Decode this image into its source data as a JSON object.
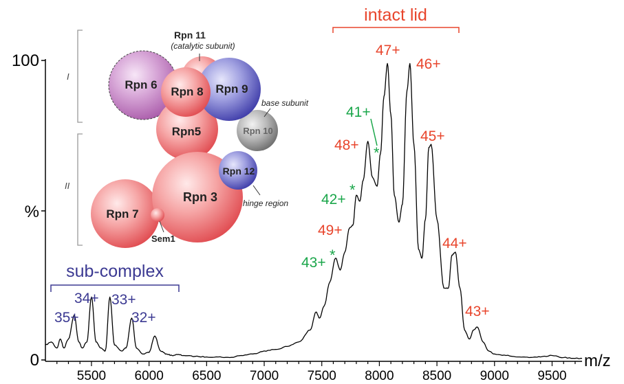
{
  "chart_data": {
    "type": "line",
    "xlabel": "m/z",
    "ylabel": "%",
    "xlim": [
      5100,
      9760
    ],
    "ylim": [
      0,
      100
    ],
    "x_ticks": [
      "5500",
      "6000",
      "6500",
      "7000",
      "7500",
      "8000",
      "8500",
      "9000",
      "9500"
    ],
    "y_ticks": [
      "0",
      "100"
    ],
    "series": [
      {
        "color": "#000000",
        "points": [
          [
            5100,
            5
          ],
          [
            5150,
            6
          ],
          [
            5200,
            4
          ],
          [
            5230,
            7
          ],
          [
            5260,
            4
          ],
          [
            5300,
            7
          ],
          [
            5350,
            15
          ],
          [
            5390,
            6
          ],
          [
            5420,
            4
          ],
          [
            5460,
            6
          ],
          [
            5500,
            21
          ],
          [
            5540,
            6
          ],
          [
            5580,
            4
          ],
          [
            5620,
            3
          ],
          [
            5660,
            21
          ],
          [
            5700,
            5
          ],
          [
            5760,
            3
          ],
          [
            5800,
            4
          ],
          [
            5850,
            14
          ],
          [
            5890,
            4
          ],
          [
            5950,
            2
          ],
          [
            6000,
            2.5
          ],
          [
            6050,
            8
          ],
          [
            6100,
            3
          ],
          [
            6150,
            2
          ],
          [
            6200,
            1.5
          ],
          [
            6250,
            1.8
          ],
          [
            6300,
            1.5
          ],
          [
            6400,
            1.2
          ],
          [
            6500,
            1
          ],
          [
            6600,
            1
          ],
          [
            6700,
            0.8
          ],
          [
            6800,
            1.5
          ],
          [
            6900,
            2
          ],
          [
            7000,
            3
          ],
          [
            7100,
            3.5
          ],
          [
            7200,
            4.5
          ],
          [
            7300,
            6
          ],
          [
            7400,
            10
          ],
          [
            7450,
            16
          ],
          [
            7480,
            14
          ],
          [
            7520,
            18
          ],
          [
            7570,
            26
          ],
          [
            7620,
            34
          ],
          [
            7660,
            30
          ],
          [
            7700,
            36
          ],
          [
            7740,
            44
          ],
          [
            7770,
            45
          ],
          [
            7800,
            55
          ],
          [
            7830,
            53
          ],
          [
            7860,
            60
          ],
          [
            7900,
            73
          ],
          [
            7940,
            61
          ],
          [
            7980,
            58
          ],
          [
            8010,
            69
          ],
          [
            8040,
            88
          ],
          [
            8070,
            99
          ],
          [
            8100,
            82
          ],
          [
            8130,
            55
          ],
          [
            8170,
            46
          ],
          [
            8200,
            52
          ],
          [
            8240,
            90
          ],
          [
            8265,
            99
          ],
          [
            8300,
            72
          ],
          [
            8340,
            37
          ],
          [
            8370,
            34
          ],
          [
            8400,
            47
          ],
          [
            8430,
            71
          ],
          [
            8450,
            72
          ],
          [
            8500,
            47
          ],
          [
            8560,
            24
          ],
          [
            8600,
            24
          ],
          [
            8630,
            35
          ],
          [
            8660,
            36
          ],
          [
            8700,
            24
          ],
          [
            8740,
            10
          ],
          [
            8780,
            7
          ],
          [
            8820,
            10
          ],
          [
            8850,
            11
          ],
          [
            8900,
            6
          ],
          [
            8950,
            3
          ],
          [
            9000,
            2
          ],
          [
            9100,
            1.5
          ],
          [
            9200,
            1
          ],
          [
            9300,
            0.8
          ],
          [
            9400,
            1
          ],
          [
            9500,
            1.5
          ],
          [
            9600,
            0.8
          ],
          [
            9700,
            0.5
          ],
          [
            9760,
            0.5
          ]
        ]
      }
    ],
    "annotations": {
      "intact_lid_title": "intact lid",
      "sub_complex_title": "sub-complex",
      "red_labels": [
        "47+",
        "46+",
        "48+",
        "45+",
        "49+",
        "44+",
        "43+"
      ],
      "green_labels": [
        "41+",
        "*",
        "42+",
        "*",
        "43+",
        "*"
      ],
      "blue_labels": [
        "34+",
        "33+",
        "35+",
        "32+"
      ]
    },
    "colors": {
      "red": "#e8452c",
      "green": "#1aa64a",
      "blue": "#3b3992",
      "black": "#000000"
    },
    "inset": {
      "group_labels": [
        "I",
        "II"
      ],
      "subunits": [
        "Rpn 6",
        "Rpn 8",
        "Rpn 9",
        "Rpn5",
        "Rpn 10",
        "Rpn 12",
        "Rpn 3",
        "Rpn 7"
      ],
      "callouts": [
        "Rpn 11",
        "(catalytic subunit)",
        "base subunit",
        "hinge region",
        "Sem1"
      ]
    }
  }
}
